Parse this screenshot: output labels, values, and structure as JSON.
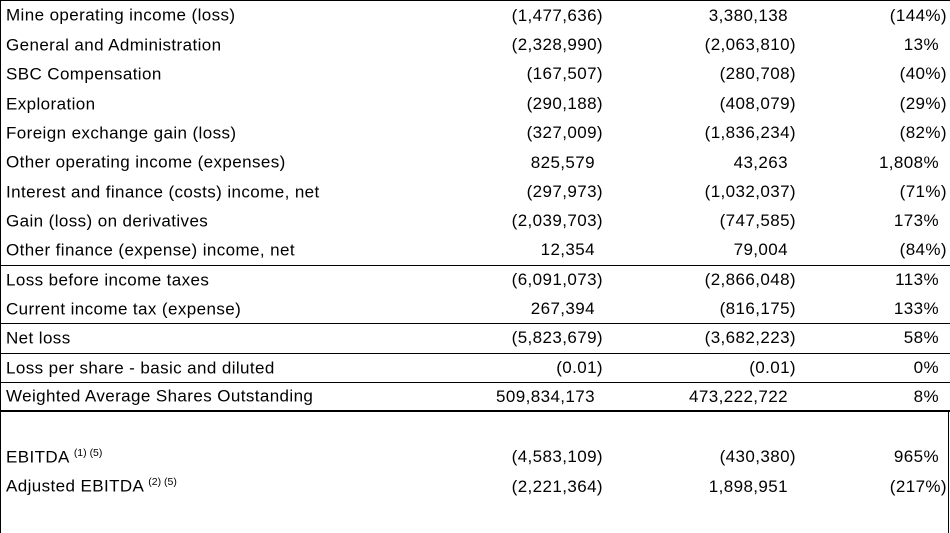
{
  "document": {
    "type": "financial-statement-excerpt",
    "colors": {
      "text": "#000000",
      "background": "#ffffff",
      "border": "#000000"
    },
    "rows": [
      {
        "label": "Mine operating income (loss)",
        "values": [
          "(1,477,636)",
          "3,380,138",
          "(144%)"
        ]
      },
      {
        "label": "General and Administration",
        "values": [
          "(2,328,990)",
          "(2,063,810)",
          "13%"
        ]
      },
      {
        "label": "SBC Compensation",
        "values": [
          "(167,507)",
          "(280,708)",
          "(40%)"
        ]
      },
      {
        "label": "Exploration",
        "values": [
          "(290,188)",
          "(408,079)",
          "(29%)"
        ]
      },
      {
        "label": "Foreign exchange gain (loss)",
        "values": [
          "(327,009)",
          "(1,836,234)",
          "(82%)"
        ]
      },
      {
        "label": "Other operating income (expenses)",
        "values": [
          "825,579",
          "43,263",
          "1,808%"
        ]
      },
      {
        "label": "Interest and finance (costs) income, net",
        "values": [
          "(297,973)",
          "(1,032,037)",
          "(71%)"
        ]
      },
      {
        "label": "Gain (loss) on derivatives",
        "values": [
          "(2,039,703)",
          "(747,585)",
          "173%"
        ]
      },
      {
        "label": "Other finance (expense) income, net",
        "values": [
          "12,354",
          "79,004",
          "(84%)"
        ],
        "divider_after": "single"
      },
      {
        "label": "Loss before income taxes",
        "values": [
          "(6,091,073)",
          "(2,866,048)",
          "113%"
        ]
      },
      {
        "label": "Current income tax (expense)",
        "values": [
          "267,394",
          "(816,175)",
          "133%"
        ],
        "divider_after": "single"
      },
      {
        "label": "Net loss",
        "values": [
          "(5,823,679)",
          "(3,682,223)",
          "58%"
        ],
        "divider_after": "single"
      },
      {
        "label": "Loss per share - basic and diluted",
        "values": [
          "(0.01)",
          "(0.01)",
          "0%"
        ],
        "divider_after": "single"
      },
      {
        "label": "Weighted Average Shares Outstanding",
        "values": [
          "509,834,173",
          "473,222,722",
          "8%"
        ],
        "divider_after": "thick"
      },
      {
        "blank": true
      },
      {
        "label": "EBITDA",
        "superscript": "(1) (5)",
        "values": [
          "(4,583,109)",
          "(430,380)",
          "965%"
        ]
      },
      {
        "label": "Adjusted EBITDA",
        "superscript": "(2) (5)",
        "values": [
          "(2,221,364)",
          "1,898,951",
          "(217%)"
        ]
      }
    ]
  }
}
